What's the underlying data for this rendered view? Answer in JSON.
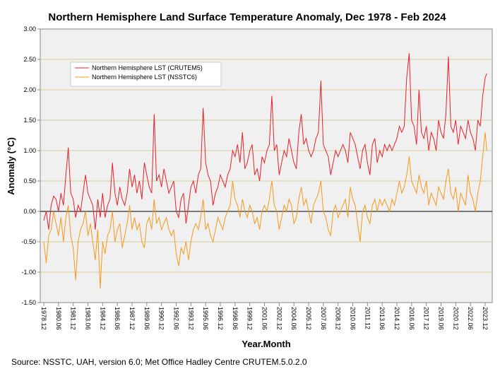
{
  "chart_data": {
    "type": "line",
    "title": "Northern Hemisphere Land Surface Temperature Anomaly, Dec 1978 - Feb 2024",
    "xlabel": "Year.Month",
    "ylabel": "Anomaly (°C)",
    "ylim": [
      -1.5,
      3.0
    ],
    "yticks": [
      "3.00",
      "2.50",
      "2.00",
      "1.50",
      "1.00",
      "0.50",
      "0.00",
      "-0.50",
      "-1.00",
      "-1.50"
    ],
    "yticks_values": [
      3,
      2.5,
      2,
      1.5,
      1,
      0.5,
      0,
      -0.5,
      -1,
      -1.5
    ],
    "xticks": [
      "1978.12",
      "1980.06",
      "1981.12",
      "1983.06",
      "1984.12",
      "1986.06",
      "1987.12",
      "1989.06",
      "1990.12",
      "1992.06",
      "1993.12",
      "1995.06",
      "1996.12",
      "1998.06",
      "1999.12",
      "2001.06",
      "2002.12",
      "2004.06",
      "2005.12",
      "2007.06",
      "2008.12",
      "2010.06",
      "2011.12",
      "2013.06",
      "2014.12",
      "2016.06",
      "2017.12",
      "2019.06",
      "2020.12",
      "2022.06",
      "2023.12"
    ],
    "grid": true,
    "legend_position": "top-left",
    "x_start": 1978.917,
    "x_step": 0.25,
    "x_end": 2024.083,
    "note": "values sampled quarterly, last value is Feb 2024",
    "series": [
      {
        "name": "Northern Hemisphere LST (CRUTEM5)",
        "color": "#e8202a",
        "values": [
          -0.15,
          0.0,
          -0.3,
          0.1,
          0.25,
          0.2,
          0.0,
          0.3,
          0.1,
          0.6,
          1.05,
          0.3,
          0.2,
          -0.1,
          0.1,
          0.0,
          0.3,
          0.6,
          0.3,
          0.2,
          0.1,
          -0.3,
          0.2,
          -0.1,
          0.3,
          -0.1,
          0.1,
          0.2,
          0.8,
          0.3,
          0.1,
          0.4,
          0.2,
          0.1,
          0.3,
          0.7,
          0.4,
          0.6,
          0.3,
          0.5,
          0.2,
          0.8,
          0.6,
          0.4,
          0.3,
          1.6,
          0.5,
          0.6,
          0.4,
          0.7,
          0.5,
          0.3,
          0.4,
          0.5,
          0.0,
          -0.1,
          0.2,
          0.3,
          -0.2,
          0.1,
          0.4,
          0.5,
          0.3,
          0.6,
          0.7,
          1.7,
          0.8,
          0.6,
          0.5,
          0.1,
          0.3,
          0.4,
          0.6,
          0.5,
          0.4,
          0.6,
          0.7,
          1.0,
          0.9,
          1.1,
          0.8,
          1.3,
          0.7,
          0.8,
          1.0,
          1.1,
          0.6,
          0.7,
          0.5,
          0.9,
          0.8,
          1.0,
          1.1,
          1.9,
          1.0,
          1.1,
          0.6,
          0.8,
          1.0,
          0.9,
          1.2,
          1.0,
          0.8,
          0.7,
          1.3,
          1.6,
          1.1,
          1.2,
          1.0,
          0.9,
          1.0,
          1.2,
          1.3,
          2.15,
          1.1,
          1.0,
          0.9,
          0.6,
          0.8,
          1.0,
          0.9,
          1.0,
          1.1,
          1.0,
          0.8,
          1.3,
          1.2,
          1.1,
          0.9,
          0.7,
          1.0,
          1.1,
          0.8,
          0.6,
          1.1,
          1.2,
          0.8,
          1.0,
          0.9,
          1.1,
          1.0,
          1.1,
          1.0,
          1.1,
          1.2,
          1.4,
          1.3,
          1.4,
          2.2,
          2.6,
          1.5,
          1.4,
          1.1,
          2.0,
          1.3,
          1.2,
          1.4,
          1.0,
          1.3,
          1.2,
          1.0,
          1.5,
          1.3,
          1.2,
          1.6,
          2.55,
          1.4,
          1.3,
          1.5,
          1.1,
          1.4,
          1.3,
          1.2,
          1.5,
          1.3,
          1.2,
          1.0,
          1.5,
          1.4,
          1.9,
          2.2,
          2.27
        ]
      },
      {
        "name": "Northern Hemisphere LST (NSSTC6)",
        "color": "#f59a1a",
        "values": [
          -0.5,
          -0.85,
          -0.4,
          -0.3,
          0.0,
          -0.2,
          -0.4,
          -0.1,
          -0.5,
          -0.1,
          0.1,
          -0.4,
          -0.6,
          -1.13,
          -0.5,
          -0.3,
          -0.2,
          0.0,
          -0.4,
          -0.2,
          -0.5,
          -0.8,
          -0.3,
          -1.27,
          -0.5,
          -0.7,
          -0.4,
          -0.3,
          0.0,
          -0.5,
          -0.3,
          -0.2,
          -0.6,
          -0.4,
          -0.2,
          0.1,
          -0.3,
          -0.1,
          -0.3,
          -0.2,
          -0.5,
          -0.6,
          -0.2,
          -0.1,
          -0.3,
          0.2,
          -0.2,
          -0.1,
          -0.3,
          -0.2,
          -0.1,
          -0.3,
          -0.4,
          -0.3,
          -0.7,
          -0.9,
          -0.6,
          -0.7,
          -0.5,
          -0.8,
          -0.5,
          -0.3,
          -0.2,
          -0.3,
          -0.1,
          0.2,
          -0.3,
          -0.2,
          -0.4,
          -0.5,
          -0.3,
          -0.1,
          -0.2,
          -0.3,
          -0.1,
          0.0,
          0.1,
          0.5,
          0.2,
          0.1,
          -0.1,
          0.2,
          0.0,
          -0.1,
          0.1,
          0.0,
          -0.2,
          -0.1,
          -0.3,
          0.0,
          0.1,
          0.0,
          0.2,
          0.5,
          0.1,
          0.0,
          -0.3,
          -0.1,
          0.1,
          0.0,
          0.2,
          0.1,
          -0.2,
          -0.1,
          0.2,
          0.4,
          0.1,
          0.2,
          0.0,
          -0.2,
          0.1,
          0.2,
          0.3,
          0.5,
          0.0,
          -0.1,
          -0.3,
          -0.4,
          0.0,
          0.1,
          -0.1,
          0.0,
          0.1,
          0.2,
          -0.1,
          0.4,
          0.2,
          0.1,
          -0.2,
          -0.5,
          0.0,
          0.1,
          -0.1,
          -0.2,
          0.1,
          0.2,
          0.0,
          0.2,
          0.1,
          0.2,
          0.1,
          0.0,
          0.2,
          0.1,
          0.3,
          0.5,
          0.3,
          0.4,
          0.6,
          0.9,
          0.5,
          0.4,
          0.3,
          0.6,
          0.4,
          0.3,
          0.5,
          0.1,
          0.3,
          0.2,
          0.1,
          0.4,
          0.3,
          0.2,
          0.5,
          0.7,
          0.3,
          0.2,
          0.4,
          0.0,
          0.3,
          0.2,
          0.1,
          0.6,
          0.3,
          0.2,
          0.0,
          0.3,
          0.5,
          0.9,
          1.3,
          1.0
        ]
      }
    ]
  },
  "source": "Source: NSSTC, UAH, version 6.0; Met Office Hadley Centre CRUTEM.5.0.2.0"
}
